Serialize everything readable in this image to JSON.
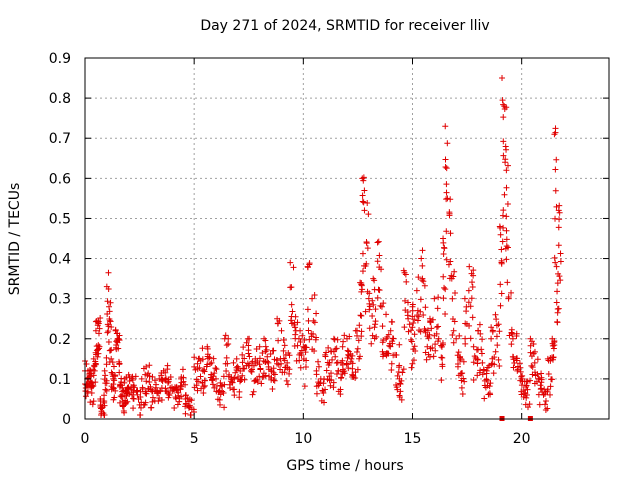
{
  "chart_data": {
    "type": "scatter",
    "title": "Day 271 of 2024, SRMTID for receiver lliv",
    "xlabel": "GPS time / hours",
    "ylabel": "SRMTID / TECUs",
    "xlim": [
      0,
      24
    ],
    "ylim": [
      0,
      0.9
    ],
    "x_ticks": [
      0,
      5,
      10,
      15,
      20
    ],
    "x_tick_labels": [
      "0",
      "5",
      "10",
      "15",
      "20"
    ],
    "y_ticks": [
      0,
      0.1,
      0.2,
      0.3,
      0.4,
      0.5,
      0.6,
      0.7,
      0.8,
      0.9
    ],
    "y_tick_labels": [
      "0",
      "0.1",
      "0.2",
      "0.3",
      "0.4",
      "0.5",
      "0.6",
      "0.7",
      "0.8",
      "0.9"
    ],
    "grid": true,
    "marker": "+",
    "color": "#e00000",
    "series": [
      {
        "name": "SRMTID",
        "x": [
          0.0,
          0.1,
          0.2,
          0.3,
          0.4,
          0.5,
          0.6,
          0.7,
          0.8,
          0.9,
          1.0,
          1.1,
          1.2,
          1.3,
          1.4,
          1.5,
          1.6,
          1.7,
          1.8,
          1.9,
          2.0,
          2.2,
          2.4,
          2.6,
          2.8,
          3.0,
          3.2,
          3.4,
          3.6,
          3.8,
          4.0,
          4.2,
          4.4,
          4.6,
          4.8,
          5.0,
          5.2,
          5.4,
          5.6,
          5.8,
          6.0,
          6.2,
          6.4,
          6.6,
          6.8,
          7.0,
          7.2,
          7.4,
          7.6,
          7.8,
          8.0,
          8.2,
          8.4,
          8.6,
          8.8,
          9.0,
          9.2,
          9.4,
          9.6,
          9.8,
          10.0,
          10.2,
          10.4,
          10.6,
          10.8,
          11.0,
          11.2,
          11.4,
          11.6,
          11.8,
          12.0,
          12.2,
          12.4,
          12.6,
          12.7,
          12.8,
          13.0,
          13.2,
          13.4,
          13.6,
          13.8,
          14.0,
          14.2,
          14.4,
          14.6,
          14.8,
          15.0,
          15.2,
          15.4,
          15.6,
          15.8,
          16.0,
          16.2,
          16.4,
          16.5,
          16.6,
          16.8,
          17.0,
          17.2,
          17.4,
          17.6,
          17.8,
          18.0,
          18.2,
          18.4,
          18.6,
          18.8,
          19.0,
          19.1,
          19.2,
          19.3,
          19.4,
          19.6,
          19.8,
          20.0,
          20.2,
          20.4,
          20.6,
          20.8,
          21.0,
          21.2,
          21.4,
          21.5,
          21.6,
          21.7
        ],
        "y": [
          0.12,
          0.1,
          0.11,
          0.09,
          0.15,
          0.22,
          0.24,
          0.05,
          0.03,
          0.12,
          0.33,
          0.28,
          0.15,
          0.1,
          0.22,
          0.2,
          0.08,
          0.06,
          0.09,
          0.07,
          0.11,
          0.08,
          0.06,
          0.1,
          0.13,
          0.08,
          0.07,
          0.1,
          0.12,
          0.09,
          0.07,
          0.08,
          0.1,
          0.05,
          0.03,
          0.13,
          0.15,
          0.12,
          0.18,
          0.14,
          0.1,
          0.09,
          0.2,
          0.11,
          0.14,
          0.1,
          0.16,
          0.19,
          0.12,
          0.15,
          0.18,
          0.2,
          0.14,
          0.17,
          0.25,
          0.22,
          0.16,
          0.39,
          0.24,
          0.2,
          0.18,
          0.38,
          0.3,
          0.12,
          0.1,
          0.16,
          0.14,
          0.2,
          0.12,
          0.18,
          0.2,
          0.15,
          0.22,
          0.34,
          0.6,
          0.52,
          0.3,
          0.35,
          0.44,
          0.28,
          0.2,
          0.22,
          0.16,
          0.1,
          0.37,
          0.25,
          0.28,
          0.32,
          0.4,
          0.22,
          0.25,
          0.3,
          0.2,
          0.45,
          0.73,
          0.55,
          0.35,
          0.2,
          0.15,
          0.3,
          0.38,
          0.18,
          0.22,
          0.14,
          0.12,
          0.2,
          0.26,
          0.48,
          0.85,
          0.78,
          0.62,
          0.3,
          0.2,
          0.12,
          0.1,
          0.08,
          0.2,
          0.14,
          0.1,
          0.06,
          0.15,
          0.2,
          0.71,
          0.38,
          0.52
        ]
      }
    ],
    "zero_markers_x": [
      19.1,
      20.4
    ]
  }
}
